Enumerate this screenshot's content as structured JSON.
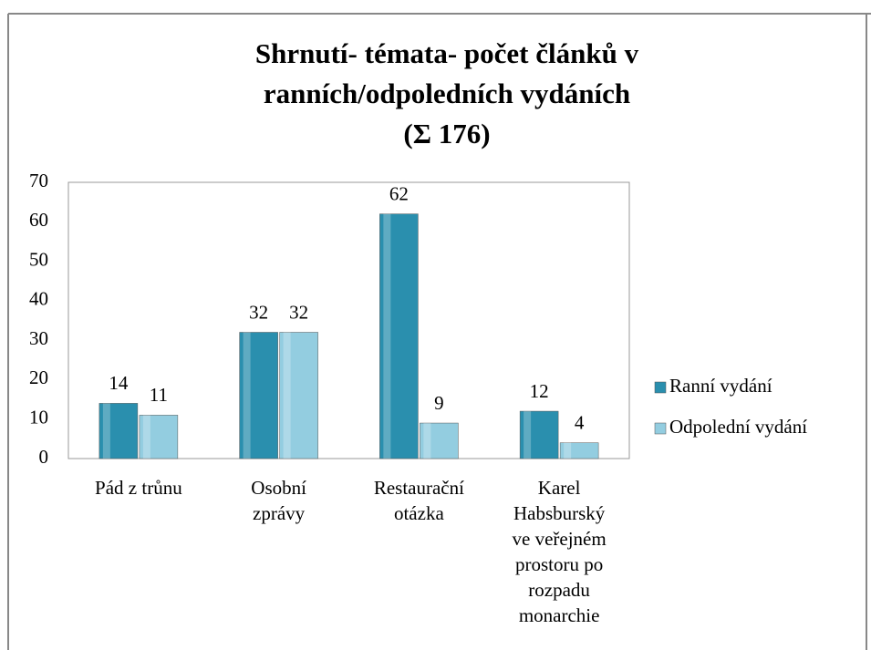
{
  "chart_data": {
    "type": "bar",
    "title": [
      "Shrnutí- témata- počet článků v",
      "ranních/odpoledních vydáních",
      "(Σ 176)"
    ],
    "categories": [
      [
        "Pád z trůnu"
      ],
      [
        "Osobní",
        "zprávy"
      ],
      [
        "Restaurační",
        "otázka"
      ],
      [
        "Karel",
        "Habsburský",
        "ve veřejném",
        "prostoru po",
        "rozpadu",
        "monarchie"
      ]
    ],
    "series": [
      {
        "name": "Ranní vydání",
        "color": "#2a8fae",
        "values": [
          14,
          32,
          62,
          12
        ]
      },
      {
        "name": "Odpolední vydání",
        "color": "#93cde0",
        "values": [
          11,
          32,
          9,
          4
        ]
      }
    ],
    "ylim": [
      0,
      70
    ],
    "yticks": [
      0,
      10,
      20,
      30,
      40,
      50,
      60,
      70
    ],
    "grid": false,
    "legend": "right"
  }
}
